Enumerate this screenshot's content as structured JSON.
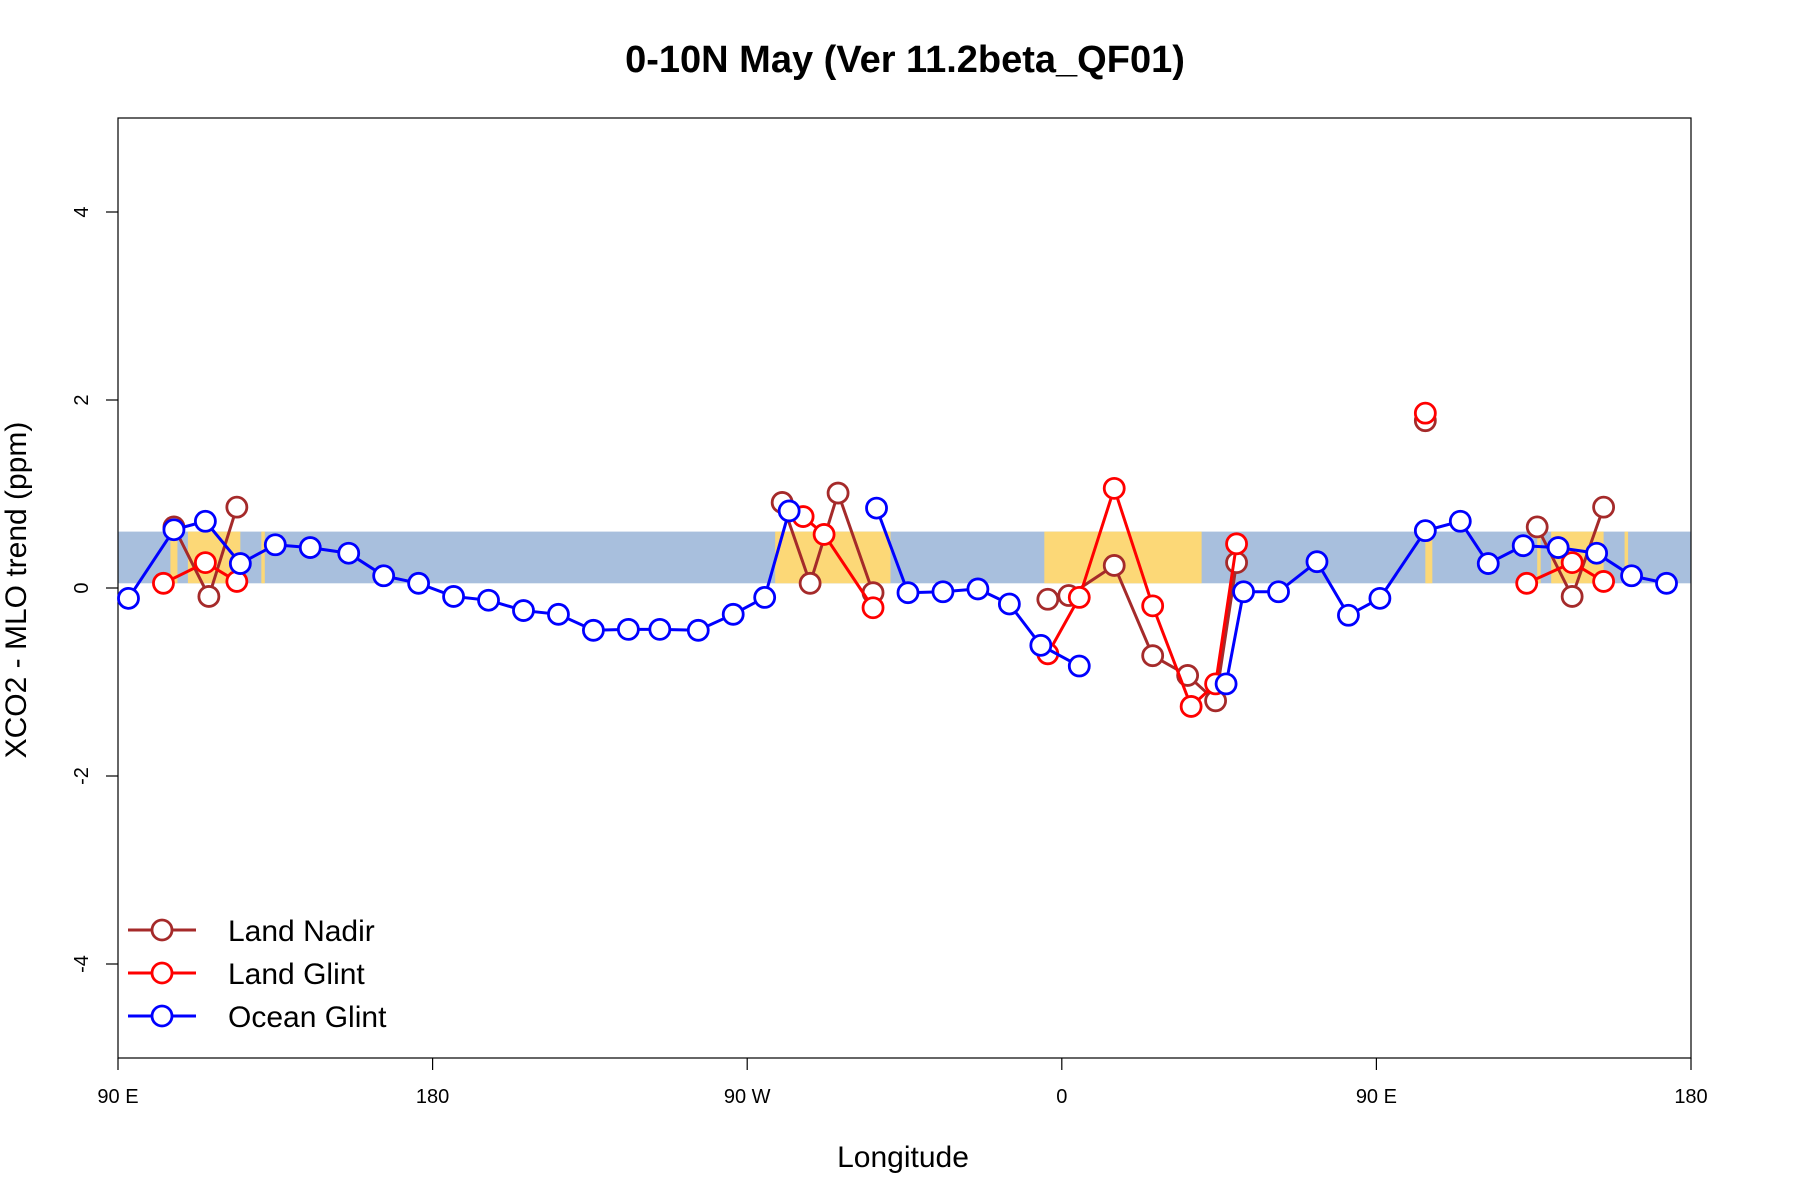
{
  "chart_data": {
    "type": "line",
    "title": "0-10N May (Ver 11.2beta_QF01)",
    "xlabel": "Longitude",
    "ylabel": "XCO2 - MLO trend (ppm)",
    "xlim": [
      90,
      540
    ],
    "ylim": [
      -5,
      5
    ],
    "x_ticks": [
      {
        "value": 90,
        "label": "90 E"
      },
      {
        "value": 180,
        "label": "180"
      },
      {
        "value": 270,
        "label": "90 W"
      },
      {
        "value": 360,
        "label": "0"
      },
      {
        "value": 450,
        "label": "90 E"
      },
      {
        "value": 540,
        "label": "180"
      }
    ],
    "y_ticks": [
      {
        "value": -4,
        "label": "-4"
      },
      {
        "value": -2,
        "label": "-2"
      },
      {
        "value": 0,
        "label": "0"
      },
      {
        "value": 2,
        "label": "2"
      },
      {
        "value": 4,
        "label": "4"
      }
    ],
    "band": {
      "ymin": 0.05,
      "ymax": 0.6,
      "ocean_color": "#a8bfdd",
      "land_color": "#fcd877"
    },
    "land_segments": [
      [
        105,
        107
      ],
      [
        110,
        125
      ],
      [
        131,
        132
      ],
      [
        278,
        311
      ],
      [
        355,
        400
      ],
      [
        464,
        466
      ],
      [
        496,
        497
      ],
      [
        500,
        515
      ],
      [
        521,
        522
      ]
    ],
    "series": [
      {
        "name": "Land Nadir",
        "color": "#a52a2a",
        "segments": [
          [
            [
              106,
              0.65
            ],
            [
              116,
              -0.09
            ],
            [
              124,
              0.86
            ]
          ],
          [
            [
              280,
              0.91
            ],
            [
              288,
              0.05
            ],
            [
              296,
              1.01
            ],
            [
              306,
              -0.05
            ]
          ],
          [
            [
              356,
              -0.12
            ],
            [
              362,
              -0.08
            ],
            [
              375,
              0.24
            ],
            [
              386,
              -0.72
            ],
            [
              396,
              -0.93
            ],
            [
              404,
              -1.2
            ],
            [
              410,
              0.27
            ]
          ],
          [
            [
              464,
              1.78
            ]
          ],
          [
            [
              496,
              0.65
            ],
            [
              506,
              -0.09
            ],
            [
              515,
              0.86
            ]
          ]
        ]
      },
      {
        "name": "Land Glint",
        "color": "#ff0000",
        "segments": [
          [
            [
              103,
              0.05
            ],
            [
              115,
              0.27
            ],
            [
              124,
              0.07
            ]
          ],
          [
            [
              286,
              0.76
            ],
            [
              292,
              0.57
            ],
            [
              306,
              -0.21
            ]
          ],
          [
            [
              356,
              -0.7
            ],
            [
              365,
              -0.1
            ],
            [
              375,
              1.06
            ],
            [
              386,
              -0.19
            ],
            [
              397,
              -1.26
            ],
            [
              404,
              -1.02
            ],
            [
              410,
              0.47
            ]
          ],
          [
            [
              464,
              1.86
            ]
          ],
          [
            [
              493,
              0.05
            ],
            [
              506,
              0.27
            ],
            [
              515,
              0.07
            ]
          ]
        ]
      },
      {
        "name": "Ocean Glint",
        "color": "#0000ff",
        "segments": [
          [
            [
              93,
              -0.11
            ],
            [
              106,
              0.62
            ],
            [
              115,
              0.71
            ],
            [
              125,
              0.26
            ],
            [
              135,
              0.46
            ],
            [
              145,
              0.43
            ],
            [
              156,
              0.37
            ],
            [
              166,
              0.13
            ],
            [
              176,
              0.05
            ],
            [
              186,
              -0.09
            ],
            [
              196,
              -0.13
            ],
            [
              206,
              -0.24
            ],
            [
              216,
              -0.28
            ],
            [
              226,
              -0.45
            ],
            [
              236,
              -0.44
            ],
            [
              245,
              -0.44
            ],
            [
              256,
              -0.45
            ],
            [
              266,
              -0.28
            ],
            [
              275,
              -0.1
            ],
            [
              282,
              0.82
            ]
          ],
          [
            [
              307,
              0.85
            ],
            [
              316,
              -0.05
            ],
            [
              326,
              -0.04
            ],
            [
              336,
              -0.01
            ],
            [
              345,
              -0.17
            ],
            [
              354,
              -0.61
            ],
            [
              365,
              -0.83
            ]
          ],
          [
            [
              407,
              -1.02
            ],
            [
              412,
              -0.04
            ],
            [
              422,
              -0.04
            ],
            [
              433,
              0.28
            ],
            [
              442,
              -0.29
            ],
            [
              451,
              -0.11
            ],
            [
              464,
              0.61
            ],
            [
              474,
              0.71
            ],
            [
              482,
              0.26
            ],
            [
              492,
              0.45
            ],
            [
              502,
              0.43
            ],
            [
              513,
              0.37
            ],
            [
              523,
              0.13
            ],
            [
              533,
              0.05
            ]
          ]
        ]
      }
    ],
    "legend": {
      "position": "bottom-left",
      "entries": [
        "Land Nadir",
        "Land Glint",
        "Ocean Glint"
      ]
    }
  }
}
